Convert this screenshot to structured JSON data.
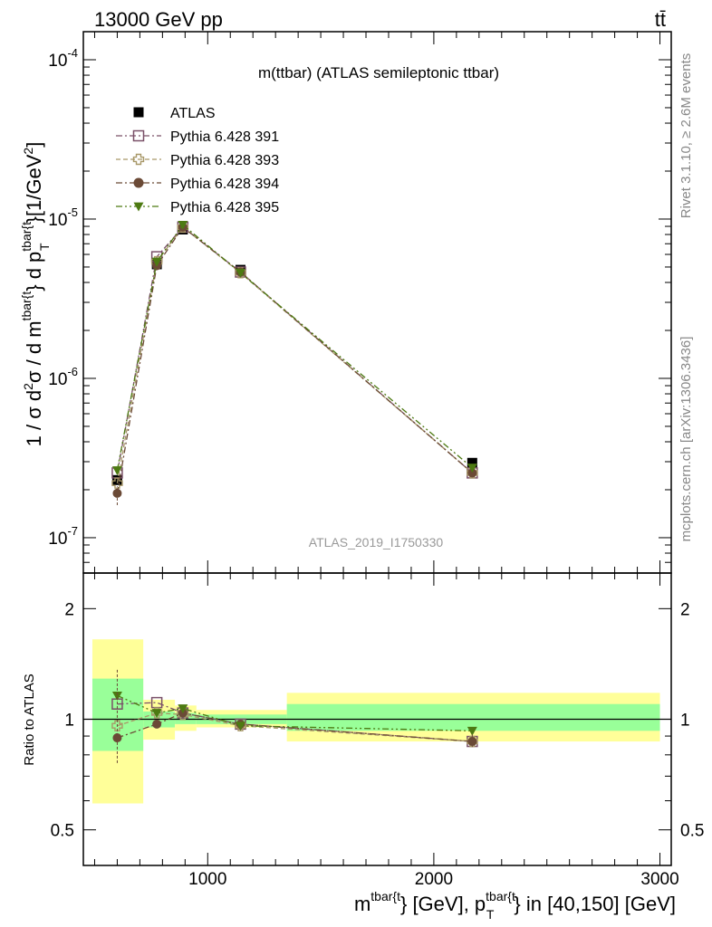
{
  "header": {
    "beam": "13000 GeV pp",
    "process": "tt̄"
  },
  "side_labels": {
    "rivet": "Rivet 3.1.10, ≥ 2.6M events",
    "mcplots": "mcplots.cern.ch [arXiv:1306.3436]"
  },
  "chart_data": [
    {
      "panel": "main",
      "type": "scatter",
      "title": "m(ttbar) (ATLAS semileptonic ttbar)",
      "analysis_id": "ATLAS_2019_I1750330",
      "ylabel": "1 / σ d²σ / d m^{tbar{t}} d p_T^{tbar{t}} [1/GeV²]",
      "yscale": "log",
      "ylim": [
        6e-08,
        0.00015
      ],
      "y_ticks": [
        "10^{-7}",
        "10^{-6}",
        "10^{-5}",
        "10^{-4}"
      ],
      "xlim": [
        450,
        3050
      ],
      "x": [
        600,
        775,
        890,
        1145,
        2170
      ],
      "legend_position": "top-left",
      "series": [
        {
          "name": "ATLAS",
          "color": "#000000",
          "marker": "filled-square",
          "line": "none",
          "values": [
            2.3e-07,
            5.2e-06,
            8.6e-06,
            4.8e-06,
            2.95e-07
          ]
        },
        {
          "name": "Pythia 6.428 391",
          "color": "#7a5068",
          "marker": "open-square",
          "line": "dash-dot",
          "values": [
            2.55e-07,
            5.8e-06,
            8.9e-06,
            4.65e-06,
            2.55e-07
          ]
        },
        {
          "name": "Pythia 6.428 393",
          "color": "#a89868",
          "marker": "open-cross",
          "line": "dash",
          "values": [
            2.2e-07,
            5.4e-06,
            8.9e-06,
            4.6e-06,
            2.55e-07
          ]
        },
        {
          "name": "Pythia 6.428 394",
          "color": "#6b4a36",
          "marker": "filled-circle",
          "line": "dash-dot",
          "values": [
            1.9e-07,
            5.1e-06,
            8.9e-06,
            4.65e-06,
            2.55e-07
          ]
        },
        {
          "name": "Pythia 6.428 395",
          "color": "#4d7a12",
          "marker": "filled-triangle-down",
          "line": "dash-dot-dot",
          "values": [
            2.65e-07,
            5.4e-06,
            9.2e-06,
            4.6e-06,
            2.75e-07
          ]
        }
      ]
    },
    {
      "panel": "ratio",
      "type": "scatter",
      "ylabel": "Ratio to ATLAS",
      "xlabel": "m^{tbar{t}} [GeV], p_T^{tbar{t}} in [40,150] [GeV]",
      "yscale": "log",
      "ylim": [
        0.4,
        2.5
      ],
      "y_ticks": [
        "0.5",
        "1",
        "2"
      ],
      "x_ticks": [
        "1000",
        "2000",
        "3000"
      ],
      "xlim": [
        450,
        3050
      ],
      "x": [
        600,
        775,
        890,
        1145,
        2170
      ],
      "bands": {
        "bins": [
          [
            490,
            715
          ],
          [
            715,
            855
          ],
          [
            855,
            950
          ],
          [
            950,
            1350
          ],
          [
            1350,
            3000
          ]
        ],
        "stat_sys": [
          [
            0.59,
            1.65
          ],
          [
            0.88,
            1.13
          ],
          [
            0.93,
            1.09
          ],
          [
            0.95,
            1.06
          ],
          [
            0.87,
            1.18
          ]
        ],
        "stat": [
          [
            0.82,
            1.29
          ],
          [
            0.95,
            1.05
          ],
          [
            0.97,
            1.04
          ],
          [
            0.97,
            1.03
          ],
          [
            0.93,
            1.1
          ]
        ],
        "outer_color": "#ffff99",
        "inner_color": "#99ff99"
      },
      "series": [
        {
          "name": "Pythia 6.428 391",
          "values": [
            1.1,
            1.11,
            1.04,
            0.97,
            0.87
          ]
        },
        {
          "name": "Pythia 6.428 393",
          "values": [
            0.96,
            1.04,
            1.03,
            0.96,
            0.87
          ]
        },
        {
          "name": "Pythia 6.428 394",
          "values": [
            0.89,
            0.97,
            1.04,
            0.97,
            0.87
          ]
        },
        {
          "name": "Pythia 6.428 395",
          "values": [
            1.16,
            1.04,
            1.07,
            0.96,
            0.93
          ]
        }
      ]
    }
  ]
}
